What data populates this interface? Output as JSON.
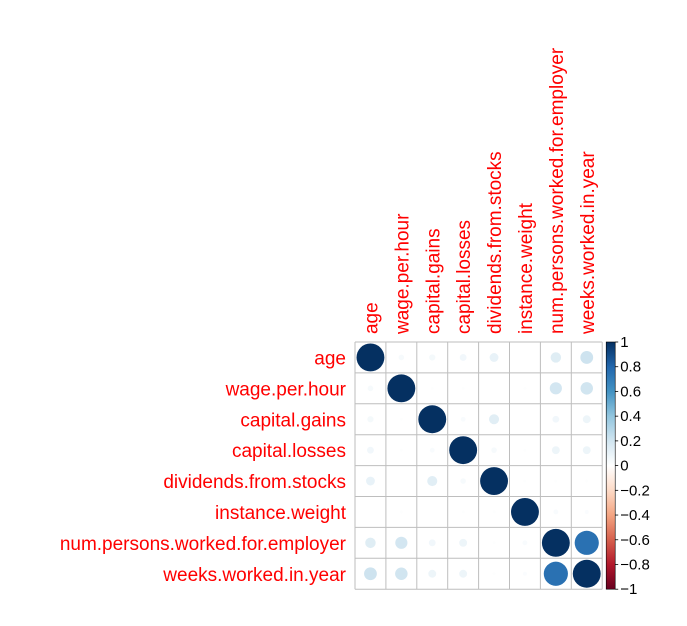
{
  "chart_data": {
    "type": "heatmap",
    "subtype": "correlation-circles",
    "variables": [
      "age",
      "wage.per.hour",
      "capital.gains",
      "capital.losses",
      "dividends.from.stocks",
      "instance.weight",
      "num.persons.worked.for.employer",
      "weeks.worked.in.year"
    ],
    "matrix": [
      [
        1.0,
        0.04,
        0.05,
        0.06,
        0.1,
        0.0,
        0.14,
        0.21
      ],
      [
        0.04,
        1.0,
        0.01,
        0.01,
        0.0,
        0.01,
        0.19,
        0.2
      ],
      [
        0.05,
        0.01,
        1.0,
        0.03,
        0.13,
        0.0,
        0.06,
        0.08
      ],
      [
        0.06,
        0.01,
        0.03,
        1.0,
        0.04,
        0.01,
        0.08,
        0.08
      ],
      [
        0.1,
        0.0,
        0.13,
        0.04,
        1.0,
        0.01,
        0.01,
        0.01
      ],
      [
        0.0,
        0.01,
        0.0,
        0.01,
        0.01,
        1.0,
        0.03,
        0.02
      ],
      [
        0.14,
        0.19,
        0.06,
        0.08,
        0.01,
        0.03,
        1.0,
        0.75
      ],
      [
        0.21,
        0.2,
        0.08,
        0.08,
        0.01,
        0.02,
        0.75,
        1.0
      ]
    ],
    "color_scale": {
      "min": -1,
      "max": 1,
      "ticks": [
        "1",
        "0.8",
        "0.6",
        "0.4",
        "0.2",
        "0",
        "−0.2",
        "−0.4",
        "−0.6",
        "−0.8",
        "−1"
      ],
      "colors": [
        "#67001F",
        "#B2182B",
        "#D6604D",
        "#F4A582",
        "#FDDBC7",
        "#FFFFFF",
        "#D1E5F0",
        "#92C5DE",
        "#4393C3",
        "#2166AC",
        "#053061"
      ]
    },
    "label_color": "#ff0000",
    "grid_color": "#bebebe",
    "grid": true,
    "legend_placement": "right"
  }
}
